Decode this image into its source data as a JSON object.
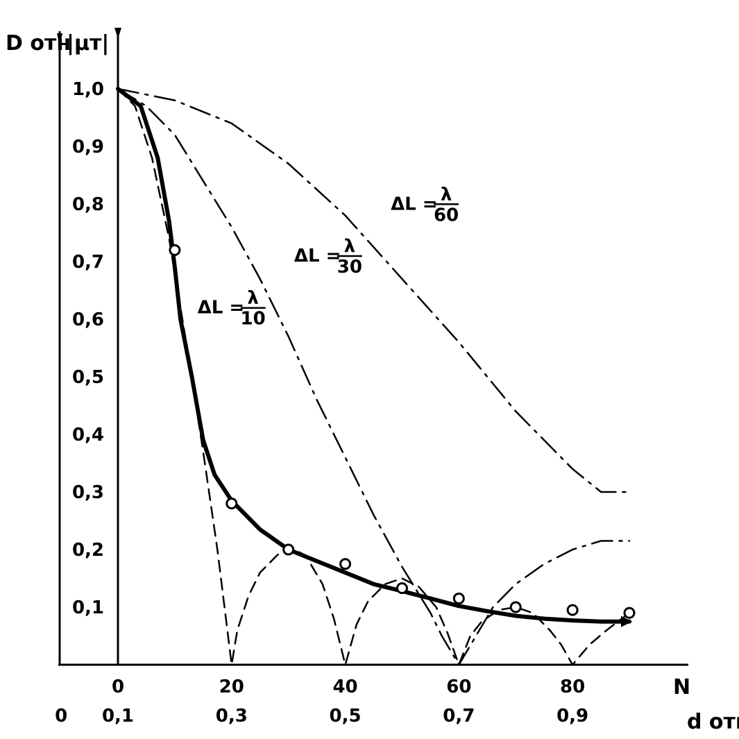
{
  "chart_data": {
    "type": "line",
    "y_axis_labels": [
      "D отн",
      "|μт|"
    ],
    "x_axis_label_top": "N",
    "x_axis_label_bottom": "d отн",
    "ylim": [
      0,
      1.0
    ],
    "xlim": [
      0,
      90
    ],
    "y_ticks": [
      "0,1",
      "0,2",
      "0,3",
      "0,4",
      "0,5",
      "0,6",
      "0,7",
      "0,8",
      "0,9",
      "1,0"
    ],
    "y_tick_values": [
      0.1,
      0.2,
      0.3,
      0.4,
      0.5,
      0.6,
      0.7,
      0.8,
      0.9,
      1.0
    ],
    "x_ticks_N": [
      "0",
      "20",
      "40",
      "60",
      "80"
    ],
    "x_tick_values_N": [
      0,
      20,
      40,
      60,
      80
    ],
    "x_ticks_d": [
      "0",
      "0,1",
      "0,3",
      "0,5",
      "0,7",
      "0,9"
    ],
    "x_tick_values_d": [
      -10,
      0,
      20,
      40,
      60,
      80
    ],
    "grid": false,
    "series": [
      {
        "name": "",
        "style": "solid-thick",
        "points": [
          [
            0,
            1.0
          ],
          [
            4,
            0.97
          ],
          [
            7,
            0.88
          ],
          [
            9,
            0.77
          ],
          [
            10,
            0.69
          ],
          [
            11,
            0.6
          ],
          [
            13,
            0.5
          ],
          [
            15,
            0.39
          ],
          [
            17,
            0.33
          ],
          [
            20,
            0.285
          ],
          [
            25,
            0.235
          ],
          [
            30,
            0.2
          ],
          [
            35,
            0.18
          ],
          [
            40,
            0.16
          ],
          [
            45,
            0.14
          ],
          [
            50,
            0.128
          ],
          [
            55,
            0.115
          ],
          [
            60,
            0.102
          ],
          [
            65,
            0.093
          ],
          [
            70,
            0.085
          ],
          [
            75,
            0.08
          ],
          [
            80,
            0.077
          ],
          [
            85,
            0.075
          ],
          [
            90,
            0.075
          ]
        ]
      },
      {
        "name": "",
        "style": "markers",
        "points": [
          [
            10,
            0.72
          ],
          [
            20,
            0.28
          ],
          [
            30,
            0.2
          ],
          [
            40,
            0.175
          ],
          [
            50,
            0.133
          ],
          [
            60,
            0.115
          ],
          [
            70,
            0.1
          ],
          [
            80,
            0.095
          ],
          [
            90,
            0.09
          ]
        ]
      },
      {
        "name": "",
        "style": "dashed",
        "points": [
          [
            0,
            1.0
          ],
          [
            3,
            0.97
          ],
          [
            6,
            0.88
          ],
          [
            9,
            0.74
          ],
          [
            12,
            0.56
          ],
          [
            15,
            0.37
          ],
          [
            17.5,
            0.2
          ],
          [
            20,
            0.0
          ],
          [
            21,
            0.06
          ],
          [
            23,
            0.12
          ],
          [
            25,
            0.16
          ],
          [
            28,
            0.19
          ],
          [
            30,
            0.205
          ],
          [
            33,
            0.19
          ],
          [
            36,
            0.14
          ],
          [
            38,
            0.08
          ],
          [
            40,
            0.0
          ],
          [
            42,
            0.07
          ],
          [
            44,
            0.11
          ],
          [
            47,
            0.14
          ],
          [
            50,
            0.15
          ],
          [
            53,
            0.135
          ],
          [
            56,
            0.1
          ],
          [
            58,
            0.055
          ],
          [
            60,
            0.0
          ],
          [
            62,
            0.05
          ],
          [
            64,
            0.075
          ],
          [
            67,
            0.095
          ],
          [
            70,
            0.1
          ],
          [
            73,
            0.09
          ],
          [
            76,
            0.06
          ],
          [
            78,
            0.035
          ],
          [
            80,
            0.0
          ],
          [
            83,
            0.035
          ],
          [
            86,
            0.06
          ],
          [
            90,
            0.09
          ]
        ]
      },
      {
        "name": "ΔL = λ/30",
        "style": "dash-dot",
        "points": [
          [
            0,
            1.0
          ],
          [
            5,
            0.97
          ],
          [
            10,
            0.92
          ],
          [
            15,
            0.84
          ],
          [
            20,
            0.76
          ],
          [
            25,
            0.67
          ],
          [
            30,
            0.57
          ],
          [
            35,
            0.46
          ],
          [
            40,
            0.36
          ],
          [
            45,
            0.26
          ],
          [
            50,
            0.17
          ],
          [
            55,
            0.09
          ],
          [
            57,
            0.05
          ],
          [
            60,
            0.0
          ],
          [
            63,
            0.05
          ],
          [
            66,
            0.1
          ],
          [
            70,
            0.14
          ],
          [
            75,
            0.175
          ],
          [
            80,
            0.2
          ],
          [
            85,
            0.215
          ],
          [
            90,
            0.215
          ]
        ]
      },
      {
        "name": "ΔL = λ/60",
        "style": "dash-dot",
        "points": [
          [
            0,
            1.0
          ],
          [
            10,
            0.98
          ],
          [
            20,
            0.94
          ],
          [
            30,
            0.87
          ],
          [
            40,
            0.78
          ],
          [
            50,
            0.67
          ],
          [
            60,
            0.56
          ],
          [
            70,
            0.44
          ],
          [
            80,
            0.34
          ],
          [
            85,
            0.3
          ],
          [
            90,
            0.3
          ]
        ]
      }
    ],
    "annotations": [
      {
        "label_prefix": "ΔL =",
        "numerator": "λ",
        "denominator": "10",
        "x": 14,
        "y": 0.61
      },
      {
        "label_prefix": "ΔL =",
        "numerator": "λ",
        "denominator": "30",
        "x": 31,
        "y": 0.7
      },
      {
        "label_prefix": "ΔL =",
        "numerator": "λ",
        "denominator": "60",
        "x": 48,
        "y": 0.79
      }
    ]
  }
}
